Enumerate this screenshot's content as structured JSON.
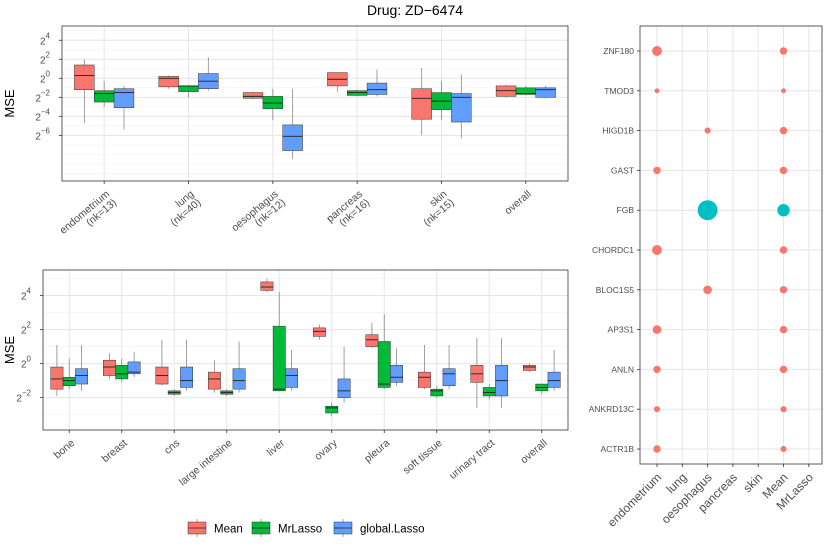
{
  "title": "Drug: ZD−6474",
  "colors": {
    "Mean": "#F8766D",
    "MrLasso": "#00BA38",
    "global.Lasso": "#619CFF",
    "dotTeal": "#00BFC4",
    "box_line": "#333333",
    "whisker": "#888888",
    "grid": "#e6e6e6",
    "panel_border": "#333333"
  },
  "legend": {
    "items": [
      "Mean",
      "MrLasso",
      "global.Lasso"
    ]
  },
  "chart_data": [
    {
      "type": "boxplot",
      "id": "top",
      "ylabel": "MSE",
      "yscale": "log2",
      "ylim": [
        -10.8,
        5.5
      ],
      "yticks": [
        {
          "exp": "4",
          "val": 4
        },
        {
          "exp": "2",
          "val": 2
        },
        {
          "exp": "0",
          "val": 0
        },
        {
          "exp": "−2",
          "val": -2
        },
        {
          "exp": "−4",
          "val": -4
        },
        {
          "exp": "−6",
          "val": -6
        }
      ],
      "series_names": [
        "Mean",
        "MrLasso",
        "global.Lasso"
      ],
      "categories": [
        {
          "label": "endometrium",
          "sub": "(nk=13)",
          "boxes": [
            {
              "min": -4.7,
              "q1": -1.2,
              "med": 0.3,
              "q3": 1.4,
              "max": 2.0
            },
            {
              "min": -3.0,
              "q1": -2.5,
              "med": -1.6,
              "q3": -1.3,
              "max": -0.3
            },
            {
              "min": -5.4,
              "q1": -3.1,
              "med": -1.5,
              "q3": -1.1,
              "max": -0.8
            }
          ]
        },
        {
          "label": "lung",
          "sub": "(nk=40)",
          "boxes": [
            {
              "min": -1.1,
              "q1": -0.9,
              "med": 0.0,
              "q3": 0.2,
              "max": 0.3
            },
            {
              "min": -2.0,
              "q1": -1.4,
              "med": -0.8,
              "q3": -0.8,
              "max": -0.7
            },
            {
              "min": -1.3,
              "q1": -1.1,
              "med": -0.3,
              "q3": 0.5,
              "max": 2.2
            }
          ]
        },
        {
          "label": "oesophagus",
          "sub": "(nk=12)",
          "boxes": [
            {
              "min": -2.2,
              "q1": -2.1,
              "med": -1.9,
              "q3": -1.5,
              "max": -1.4
            },
            {
              "min": -4.4,
              "q1": -3.2,
              "med": -2.6,
              "q3": -1.9,
              "max": -1.1
            },
            {
              "min": -8.5,
              "q1": -7.6,
              "med": -6.1,
              "q3": -4.9,
              "max": -1.1
            }
          ]
        },
        {
          "label": "pancreas",
          "sub": "(nk=16)",
          "boxes": [
            {
              "min": -1.4,
              "q1": -0.8,
              "med": -0.1,
              "q3": 0.6,
              "max": 0.6
            },
            {
              "min": -1.9,
              "q1": -1.8,
              "med": -1.5,
              "q3": -1.3,
              "max": -1.2
            },
            {
              "min": -1.9,
              "q1": -1.7,
              "med": -1.2,
              "q3": -0.5,
              "max": 0.9
            }
          ]
        },
        {
          "label": "skin",
          "sub": "(nk=15)",
          "boxes": [
            {
              "min": -6.0,
              "q1": -4.3,
              "med": -2.1,
              "q3": -1.1,
              "max": 1.1
            },
            {
              "min": -4.4,
              "q1": -3.3,
              "med": -2.4,
              "q3": -1.5,
              "max": -0.3
            },
            {
              "min": -6.3,
              "q1": -4.6,
              "med": -2.0,
              "q3": -1.6,
              "max": 0.4
            }
          ]
        },
        {
          "label": "overall",
          "sub": "",
          "boxes": [
            {
              "min": -2.0,
              "q1": -1.9,
              "med": -1.3,
              "q3": -0.8,
              "max": -0.7
            },
            {
              "min": -1.8,
              "q1": -1.7,
              "med": -1.6,
              "q3": -1.0,
              "max": -0.8
            },
            {
              "min": -2.1,
              "q1": -2.0,
              "med": -1.2,
              "q3": -1.0,
              "max": -0.8
            }
          ]
        }
      ]
    },
    {
      "type": "boxplot",
      "id": "bottom",
      "ylabel": "MSE",
      "yscale": "log2",
      "ylim": [
        -3.9,
        5.5
      ],
      "yticks": [
        {
          "exp": "4",
          "val": 4
        },
        {
          "exp": "2",
          "val": 2
        },
        {
          "exp": "0",
          "val": 0
        },
        {
          "exp": "−2",
          "val": -2
        }
      ],
      "series_names": [
        "Mean",
        "MrLasso",
        "global.Lasso"
      ],
      "categories": [
        {
          "label": "bone",
          "boxes": [
            {
              "min": -1.9,
              "q1": -1.5,
              "med": -0.9,
              "q3": -0.2,
              "max": 1.1
            },
            {
              "min": -1.5,
              "q1": -1.3,
              "med": -1.0,
              "q3": -0.8,
              "max": 0.3
            },
            {
              "min": -1.6,
              "q1": -1.2,
              "med": -0.7,
              "q3": -0.3,
              "max": 1.1
            }
          ]
        },
        {
          "label": "breast",
          "boxes": [
            {
              "min": -0.9,
              "q1": -0.7,
              "med": -0.2,
              "q3": 0.2,
              "max": 0.6
            },
            {
              "min": -1.1,
              "q1": -0.9,
              "med": -0.6,
              "q3": -0.1,
              "max": 0.3
            },
            {
              "min": -0.8,
              "q1": -0.6,
              "med": -0.5,
              "q3": 0.1,
              "max": 0.7
            }
          ]
        },
        {
          "label": "cns",
          "boxes": [
            {
              "min": -1.3,
              "q1": -1.2,
              "med": -0.7,
              "q3": -0.2,
              "max": 1.4
            },
            {
              "min": -1.9,
              "q1": -1.8,
              "med": -1.7,
              "q3": -1.6,
              "max": -1.5
            },
            {
              "min": -1.6,
              "q1": -1.4,
              "med": -1.0,
              "q3": -0.2,
              "max": 1.4
            }
          ]
        },
        {
          "label": "large intestine",
          "boxes": [
            {
              "min": -1.7,
              "q1": -1.5,
              "med": -0.9,
              "q3": -0.5,
              "max": 0.2
            },
            {
              "min": -1.9,
              "q1": -1.8,
              "med": -1.7,
              "q3": -1.6,
              "max": -1.5
            },
            {
              "min": -1.7,
              "q1": -1.5,
              "med": -1.0,
              "q3": -0.3,
              "max": 1.3
            }
          ]
        },
        {
          "label": "liver",
          "boxes": [
            {
              "min": 4.2,
              "q1": 4.3,
              "med": 4.5,
              "q3": 4.8,
              "max": 5.0
            },
            {
              "min": -1.6,
              "q1": -1.6,
              "med": -1.5,
              "q3": 2.2,
              "max": 4.2
            },
            {
              "min": -1.6,
              "q1": -1.4,
              "med": -0.7,
              "q3": -0.3,
              "max": 0.8
            }
          ]
        },
        {
          "label": "ovary",
          "boxes": [
            {
              "min": 1.4,
              "q1": 1.6,
              "med": 1.9,
              "q3": 2.1,
              "max": 2.3
            },
            {
              "min": -3.1,
              "q1": -2.9,
              "med": -2.6,
              "q3": -2.5,
              "max": -2.3
            },
            {
              "min": -2.3,
              "q1": -2.0,
              "med": -1.6,
              "q3": -0.9,
              "max": 1.0
            }
          ]
        },
        {
          "label": "pleura",
          "boxes": [
            {
              "min": 0.9,
              "q1": 1.0,
              "med": 1.4,
              "q3": 1.7,
              "max": 2.4
            },
            {
              "min": -1.5,
              "q1": -1.4,
              "med": -1.2,
              "q3": 1.3,
              "max": 2.9
            },
            {
              "min": -1.3,
              "q1": -1.1,
              "med": -0.8,
              "q3": -0.1,
              "max": 0.9
            }
          ]
        },
        {
          "label": "soft tissue",
          "boxes": [
            {
              "min": -1.5,
              "q1": -1.4,
              "med": -0.8,
              "q3": -0.5,
              "max": 1.1
            },
            {
              "min": -2.0,
              "q1": -1.9,
              "med": -1.6,
              "q3": -1.5,
              "max": -1.3
            },
            {
              "min": -1.5,
              "q1": -1.3,
              "med": -0.6,
              "q3": -0.3,
              "max": 1.1
            }
          ]
        },
        {
          "label": "urinary tract",
          "boxes": [
            {
              "min": -2.6,
              "q1": -1.1,
              "med": -0.6,
              "q3": -0.1,
              "max": 1.5
            },
            {
              "min": -2.1,
              "q1": -1.9,
              "med": -1.7,
              "q3": -1.4,
              "max": -1.2
            },
            {
              "min": -2.6,
              "q1": -1.9,
              "med": -1.0,
              "q3": -0.1,
              "max": 1.5
            }
          ]
        },
        {
          "label": "overall",
          "boxes": [
            {
              "min": -0.5,
              "q1": -0.4,
              "med": -0.2,
              "q3": -0.1,
              "max": 0.0
            },
            {
              "min": -1.8,
              "q1": -1.6,
              "med": -1.4,
              "q3": -1.2,
              "max": -1.2
            },
            {
              "min": -1.6,
              "q1": -1.4,
              "med": -1.0,
              "q3": -0.5,
              "max": 0.8
            }
          ]
        }
      ]
    },
    {
      "type": "dot",
      "id": "right",
      "genes": [
        "ZNF180",
        "TMOD3",
        "HIGD1B",
        "GAST",
        "FGB",
        "CHORDC1",
        "BLOC1S5",
        "AP3S1",
        "ANLN",
        "ANKRD13C",
        "ACTR1B"
      ],
      "columns": [
        "endometrium",
        "lung",
        "oesophagus",
        "pancreas",
        "skin",
        "Mean",
        "MrLasso"
      ],
      "points": [
        {
          "gene": "ZNF180",
          "col": "endometrium",
          "size": 3,
          "teal": false
        },
        {
          "gene": "ZNF180",
          "col": "Mean",
          "size": 2,
          "teal": false
        },
        {
          "gene": "TMOD3",
          "col": "endometrium",
          "size": 1,
          "teal": false
        },
        {
          "gene": "TMOD3",
          "col": "Mean",
          "size": 1,
          "teal": false
        },
        {
          "gene": "HIGD1B",
          "col": "oesophagus",
          "size": 1.5,
          "teal": false
        },
        {
          "gene": "HIGD1B",
          "col": "Mean",
          "size": 2,
          "teal": false
        },
        {
          "gene": "GAST",
          "col": "endometrium",
          "size": 2,
          "teal": false
        },
        {
          "gene": "GAST",
          "col": "Mean",
          "size": 2,
          "teal": false
        },
        {
          "gene": "FGB",
          "col": "oesophagus",
          "size": 7,
          "teal": true
        },
        {
          "gene": "FGB",
          "col": "Mean",
          "size": 4,
          "teal": true
        },
        {
          "gene": "CHORDC1",
          "col": "endometrium",
          "size": 3,
          "teal": false
        },
        {
          "gene": "CHORDC1",
          "col": "Mean",
          "size": 2,
          "teal": false
        },
        {
          "gene": "BLOC1S5",
          "col": "oesophagus",
          "size": 2.5,
          "teal": false
        },
        {
          "gene": "BLOC1S5",
          "col": "Mean",
          "size": 2,
          "teal": false
        },
        {
          "gene": "AP3S1",
          "col": "endometrium",
          "size": 2.5,
          "teal": false
        },
        {
          "gene": "AP3S1",
          "col": "Mean",
          "size": 2,
          "teal": false
        },
        {
          "gene": "ANLN",
          "col": "endometrium",
          "size": 2,
          "teal": false
        },
        {
          "gene": "ANLN",
          "col": "Mean",
          "size": 2,
          "teal": false
        },
        {
          "gene": "ANKRD13C",
          "col": "endometrium",
          "size": 1.5,
          "teal": false
        },
        {
          "gene": "ANKRD13C",
          "col": "Mean",
          "size": 1.5,
          "teal": false
        },
        {
          "gene": "ACTR1B",
          "col": "endometrium",
          "size": 2,
          "teal": false
        },
        {
          "gene": "ACTR1B",
          "col": "Mean",
          "size": 1.5,
          "teal": false
        }
      ]
    }
  ]
}
